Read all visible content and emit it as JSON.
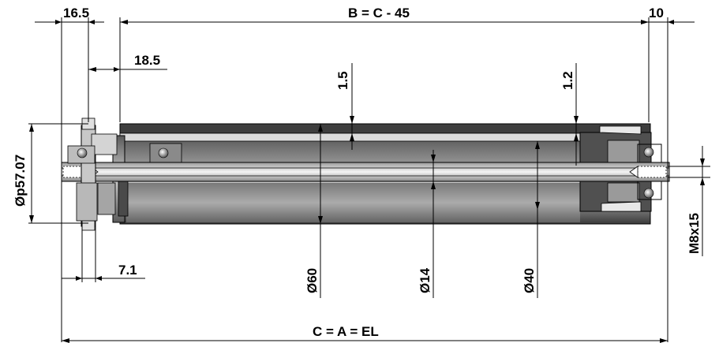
{
  "dimensions": {
    "top_left": "16.5",
    "top_main": "B = C - 45",
    "top_right": "10",
    "flange_offset": "18.5",
    "wall_thickness_top": "1.5",
    "wall_thickness_right": "1.2",
    "sprocket_diameter": "Øp57.07",
    "sprocket_width": "7.1",
    "tube_diameter": "Ø60",
    "shaft_diameter": "Ø14",
    "inner_diameter": "Ø40",
    "thread": "M8x15",
    "overall_length": "C = A = EL"
  },
  "colors": {
    "tube_dark": "#4a4a4a",
    "tube_light": "#d8d8d8",
    "shaft": "#e6e6e6",
    "line": "#000000"
  }
}
